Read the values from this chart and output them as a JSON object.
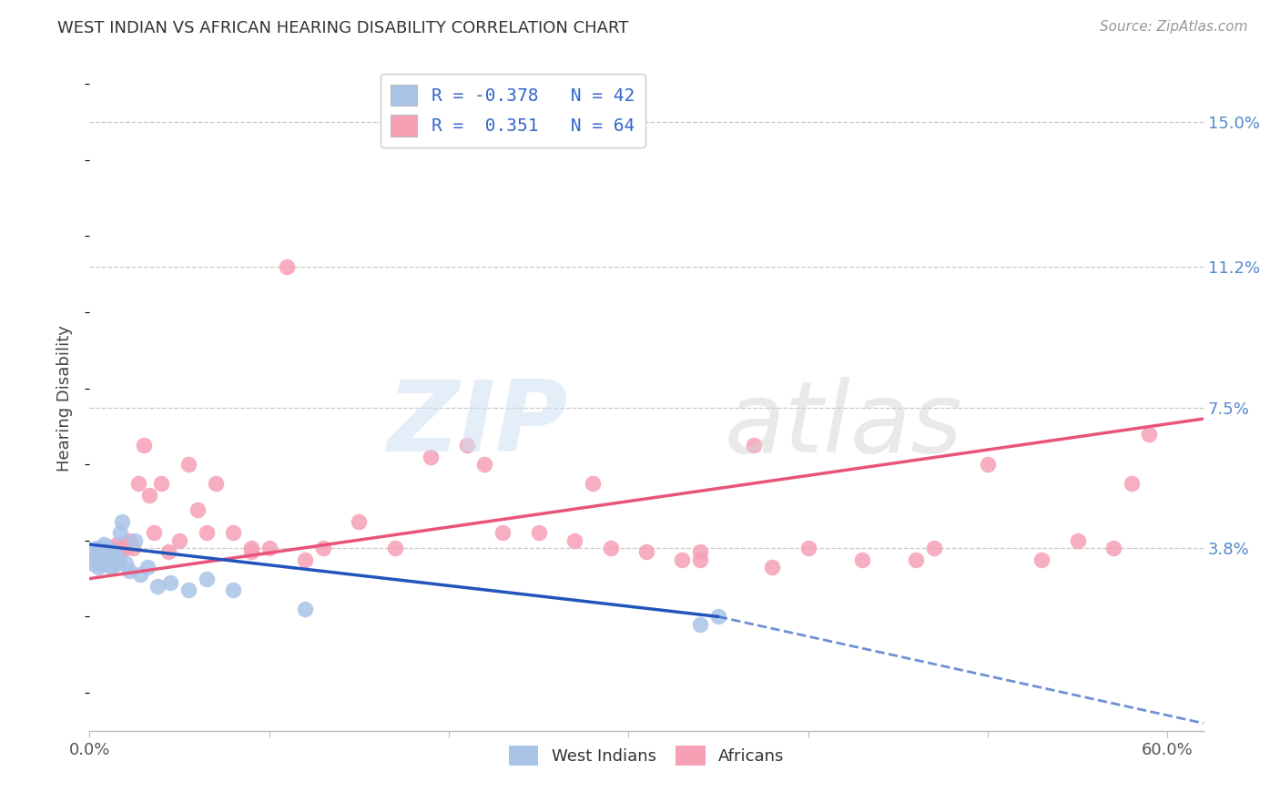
{
  "title": "WEST INDIAN VS AFRICAN HEARING DISABILITY CORRELATION CHART",
  "source": "Source: ZipAtlas.com",
  "ylabel": "Hearing Disability",
  "xlim": [
    0.0,
    0.62
  ],
  "ylim": [
    -0.01,
    0.165
  ],
  "xtick_vals": [
    0.0,
    0.1,
    0.2,
    0.3,
    0.4,
    0.5,
    0.6
  ],
  "xtick_labels": [
    "0.0%",
    "",
    "",
    "",
    "",
    "",
    "60.0%"
  ],
  "ytick_right_vals": [
    0.038,
    0.075,
    0.112,
    0.15
  ],
  "ytick_right_labels": [
    "3.8%",
    "7.5%",
    "11.2%",
    "15.0%"
  ],
  "background_color": "#ffffff",
  "grid_color": "#c8c8c8",
  "west_indian_scatter_color": "#aac4e8",
  "african_scatter_color": "#f5a0b5",
  "west_indian_line_color": "#2255bb",
  "african_line_color": "#e8547a",
  "scatter_size": 160,
  "scatter_alpha": 0.85,
  "west_indian_x": [
    0.002,
    0.003,
    0.004,
    0.004,
    0.005,
    0.005,
    0.006,
    0.006,
    0.007,
    0.007,
    0.008,
    0.008,
    0.008,
    0.009,
    0.009,
    0.01,
    0.01,
    0.01,
    0.011,
    0.012,
    0.012,
    0.013,
    0.013,
    0.014,
    0.015,
    0.015,
    0.016,
    0.017,
    0.018,
    0.02,
    0.022,
    0.025,
    0.028,
    0.032,
    0.038,
    0.045,
    0.055,
    0.065,
    0.08,
    0.12,
    0.34,
    0.35
  ],
  "west_indian_y": [
    0.034,
    0.036,
    0.035,
    0.038,
    0.033,
    0.037,
    0.034,
    0.036,
    0.035,
    0.038,
    0.034,
    0.036,
    0.039,
    0.035,
    0.037,
    0.034,
    0.036,
    0.038,
    0.034,
    0.033,
    0.036,
    0.034,
    0.037,
    0.035,
    0.034,
    0.036,
    0.035,
    0.042,
    0.045,
    0.034,
    0.032,
    0.04,
    0.031,
    0.033,
    0.028,
    0.029,
    0.027,
    0.03,
    0.027,
    0.022,
    0.018,
    0.02
  ],
  "african_x": [
    0.003,
    0.004,
    0.005,
    0.006,
    0.007,
    0.008,
    0.009,
    0.01,
    0.011,
    0.012,
    0.013,
    0.014,
    0.015,
    0.016,
    0.017,
    0.018,
    0.019,
    0.02,
    0.022,
    0.024,
    0.027,
    0.03,
    0.033,
    0.036,
    0.04,
    0.044,
    0.05,
    0.055,
    0.06,
    0.065,
    0.07,
    0.08,
    0.09,
    0.1,
    0.11,
    0.13,
    0.15,
    0.17,
    0.19,
    0.21,
    0.23,
    0.25,
    0.28,
    0.31,
    0.34,
    0.37,
    0.4,
    0.43,
    0.46,
    0.5,
    0.53,
    0.55,
    0.57,
    0.59,
    0.27,
    0.33,
    0.12,
    0.09,
    0.22,
    0.34,
    0.47,
    0.38,
    0.29,
    0.58
  ],
  "african_y": [
    0.036,
    0.037,
    0.036,
    0.037,
    0.037,
    0.038,
    0.036,
    0.037,
    0.036,
    0.037,
    0.038,
    0.037,
    0.039,
    0.037,
    0.038,
    0.038,
    0.039,
    0.038,
    0.04,
    0.038,
    0.055,
    0.065,
    0.052,
    0.042,
    0.055,
    0.037,
    0.04,
    0.06,
    0.048,
    0.042,
    0.055,
    0.042,
    0.037,
    0.038,
    0.112,
    0.038,
    0.045,
    0.038,
    0.062,
    0.065,
    0.042,
    0.042,
    0.055,
    0.037,
    0.037,
    0.065,
    0.038,
    0.035,
    0.035,
    0.06,
    0.035,
    0.04,
    0.038,
    0.068,
    0.04,
    0.035,
    0.035,
    0.038,
    0.06,
    0.035,
    0.038,
    0.033,
    0.038,
    0.055
  ],
  "wi_line_x0": 0.0,
  "wi_line_x_solid_end": 0.35,
  "wi_line_x1": 0.62,
  "wi_line_y0": 0.039,
  "wi_line_y_solid_end": 0.02,
  "wi_line_y1": -0.008,
  "af_line_x0": 0.0,
  "af_line_x1": 0.62,
  "af_line_y0": 0.03,
  "af_line_y1": 0.072,
  "legend_label_1": "R = -0.378   N = 42",
  "legend_label_2": "R =  0.351   N = 64",
  "bottom_legend_1": "West Indians",
  "bottom_legend_2": "Africans",
  "title_fontsize": 13,
  "source_fontsize": 11,
  "tick_fontsize": 13,
  "legend_fontsize": 14
}
